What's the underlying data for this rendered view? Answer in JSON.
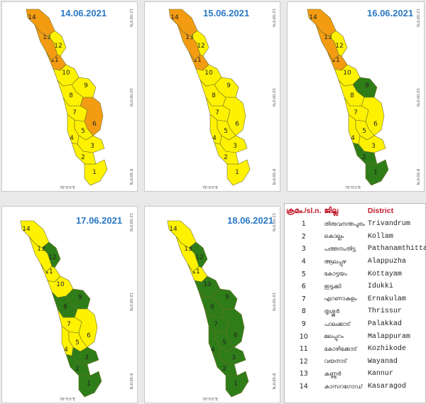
{
  "colors": {
    "yellow": "#fff200",
    "orange": "#f39c12",
    "green": "#2e7d18"
  },
  "tick_labels": {
    "lat_12": "12°00'0\"N",
    "lat_10": "10°00'0\"N",
    "lat_8": "8°00'0\"N",
    "lon_76": "76°0'0\"E"
  },
  "maps": [
    {
      "date": "14.06.2021",
      "orange": [
        6,
        11,
        13,
        14
      ],
      "green": []
    },
    {
      "date": "15.06.2021",
      "orange": [
        11,
        13,
        14
      ],
      "green": []
    },
    {
      "date": "16.06.2021",
      "orange": [
        11,
        13,
        14
      ],
      "green": [
        1,
        2,
        9
      ]
    },
    {
      "date": "17.06.2021",
      "orange": [],
      "green": [
        1,
        2,
        3,
        8,
        9,
        12
      ]
    },
    {
      "date": "18.06.2021",
      "orange": [],
      "green": [
        1,
        2,
        3,
        4,
        5,
        6,
        7,
        8,
        9,
        10,
        12
      ]
    }
  ],
  "legend": {
    "headers": {
      "no": "ക്രമം./sl.n.",
      "district_ml": "ജില്ല",
      "district_en": "District"
    },
    "rows": [
      {
        "no": "1",
        "ml": "തിരുവനന്തപുരം",
        "en": "Trivandrum"
      },
      {
        "no": "2",
        "ml": "കൊല്ലം",
        "en": "Kollam"
      },
      {
        "no": "3",
        "ml": "പത്തനംതിട്ട",
        "en": "Pathanamthitta"
      },
      {
        "no": "4",
        "ml": "ആലപ്പുഴ",
        "en": "Alappuzha"
      },
      {
        "no": "5",
        "ml": "കോട്ടയം",
        "en": "Kottayam"
      },
      {
        "no": "6",
        "ml": "ഇടുക്കി",
        "en": "Idukki"
      },
      {
        "no": "7",
        "ml": "എറണാകുളം",
        "en": "Ernakulam"
      },
      {
        "no": "8",
        "ml": "തൃശ്ശൂർ",
        "en": "Thrissur"
      },
      {
        "no": "9",
        "ml": "പാലക്കാട്",
        "en": "Palakkad"
      },
      {
        "no": "10",
        "ml": "മലപ്പുറം",
        "en": "Malappuram"
      },
      {
        "no": "11",
        "ml": "കോഴിക്കോട്",
        "en": "Kozhikode"
      },
      {
        "no": "12",
        "ml": "വയനാട്",
        "en": "Wayanad"
      },
      {
        "no": "13",
        "ml": "കണ്ണൂർ",
        "en": "Kannur"
      },
      {
        "no": "14",
        "ml": "കാസറഗോഡ്",
        "en": "Kasaragod"
      }
    ]
  }
}
